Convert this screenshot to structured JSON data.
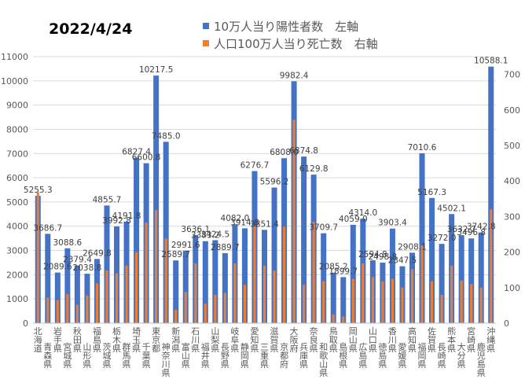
{
  "date_label": "2022/4/24",
  "chart_data": {
    "type": "bar",
    "title": "",
    "categories": [
      "北海道",
      "青森県",
      "岩手県",
      "宮城県",
      "秋田県",
      "山形県",
      "福島県",
      "茨城県",
      "栃木県",
      "群馬県",
      "埼玉県",
      "千葉県",
      "東京都",
      "神奈川県",
      "新潟県",
      "富山県",
      "石川県",
      "福井県",
      "山梨県",
      "長野県",
      "岐阜県",
      "静岡県",
      "愛知県",
      "三重県",
      "滋賀県",
      "京都府",
      "大阪府",
      "兵庫県",
      "奈良県",
      "和歌山県",
      "鳥取県",
      "島根県",
      "岡山県",
      "広島県",
      "山口県",
      "徳島県",
      "香川県",
      "愛媛県",
      "高知県",
      "福岡県",
      "佐賀県",
      "長崎県",
      "熊本県",
      "大分県",
      "宮崎県",
      "鹿児島県",
      "沖縄県"
    ],
    "series": [
      {
        "name": "10万人当り陽性者数　左軸",
        "axis": "left",
        "color": "#4472C4",
        "values": [
          5255.3,
          3686.7,
          2089.6,
          3088.6,
          2379.4,
          2038.8,
          2649.8,
          4855.7,
          3992.8,
          4191.8,
          6827.4,
          6600.8,
          10217.5,
          7485.0,
          2589.7,
          2991.6,
          3636.1,
          3383.2,
          3424.5,
          2889.7,
          4082.0,
          3914.8,
          6276.7,
          3851.4,
          5596.2,
          6808.0,
          9982.4,
          6874.8,
          6129.8,
          3709.7,
          2085.2,
          1899.7,
          4059.0,
          4314.0,
          2594.8,
          2498.8,
          3903.4,
          2347.5,
          2908.1,
          7010.6,
          5167.3,
          3272.0,
          4502.1,
          3632.7,
          3496.8,
          3742.8,
          10588.1
        ]
      },
      {
        "name": "人口100万人当り死亡数　右軸",
        "axis": "right",
        "color": "#ED7D31",
        "values": [
          368,
          72,
          65,
          82,
          52,
          78,
          112,
          148,
          140,
          162,
          200,
          283,
          318,
          238,
          38,
          88,
          168,
          55,
          80,
          85,
          168,
          108,
          272,
          162,
          148,
          272,
          572,
          108,
          285,
          118,
          25,
          19,
          125,
          168,
          130,
          118,
          125,
          100,
          152,
          218,
          118,
          80,
          162,
          120,
          110,
          100,
          320
        ]
      }
    ],
    "ylim_left": [
      0,
      11000
    ],
    "yticks_left": [
      0,
      1000,
      2000,
      3000,
      4000,
      5000,
      6000,
      7000,
      8000,
      9000,
      10000,
      11000
    ],
    "ylim_right": [
      0,
      750
    ],
    "yticks_right": [
      0,
      100,
      200,
      300,
      400,
      500,
      600,
      700
    ],
    "legend_position": "top-center",
    "grid": true,
    "data_labels": "primary-series"
  }
}
